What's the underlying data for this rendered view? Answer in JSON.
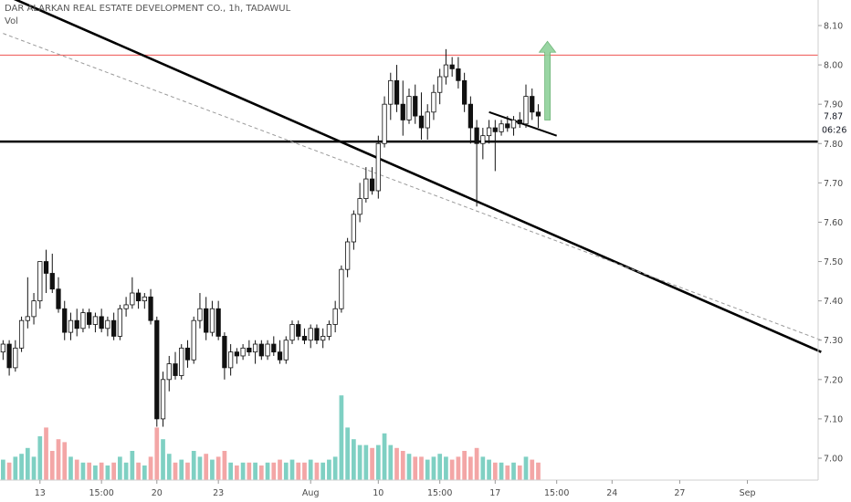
{
  "header": {
    "title": "DAR ALARKAN REAL ESTATE DEVELOPMENT CO., 1h, TADAWUL",
    "subtitle": "Vol"
  },
  "price_labels": {
    "current": "7.87",
    "countdown": "06:26"
  },
  "colors": {
    "up_candle": "#ffffff",
    "down_candle": "#111111",
    "vol_up": "#7fd0c3",
    "vol_down": "#f3a6a6",
    "resistance": "#ef5350",
    "support": "#000000",
    "trend": "#000000",
    "arrow": "#8fd19a"
  },
  "chart_data": {
    "type": "candlestick",
    "title": "DAR ALARKAN REAL ESTATE DEVELOPMENT CO., 1h, TADAWUL",
    "ylim": [
      6.92,
      8.15
    ],
    "y_ticks": [
      7.0,
      7.1,
      7.2,
      7.3,
      7.4,
      7.5,
      7.6,
      7.7,
      7.8,
      7.9,
      8.0,
      8.1
    ],
    "x_ticks": [
      {
        "label": "13",
        "bar": 6
      },
      {
        "label": "15:00",
        "bar": 16
      },
      {
        "label": "20",
        "bar": 25
      },
      {
        "label": "23",
        "bar": 35
      },
      {
        "label": "Aug",
        "bar": 50
      },
      {
        "label": "10",
        "bar": 61
      },
      {
        "label": "15:00",
        "bar": 71
      },
      {
        "label": "17",
        "bar": 80
      },
      {
        "label": "15:00",
        "bar": 90
      },
      {
        "label": "24",
        "bar": 99
      },
      {
        "label": "27",
        "bar": 110
      },
      {
        "label": "Sep",
        "bar": 121
      }
    ],
    "bars_visible": 133,
    "candles": [
      [
        7.27,
        7.3,
        7.25,
        7.29,
        0.035
      ],
      [
        7.29,
        7.3,
        7.21,
        7.23,
        0.03
      ],
      [
        7.23,
        7.3,
        7.22,
        7.28,
        0.04
      ],
      [
        7.28,
        7.36,
        7.27,
        7.35,
        0.045
      ],
      [
        7.35,
        7.46,
        7.33,
        7.36,
        0.055
      ],
      [
        7.36,
        7.42,
        7.34,
        7.4,
        0.04
      ],
      [
        7.4,
        7.5,
        7.38,
        7.5,
        0.075
      ],
      [
        7.5,
        7.53,
        7.42,
        7.47,
        0.09
      ],
      [
        7.47,
        7.52,
        7.42,
        7.43,
        0.05
      ],
      [
        7.43,
        7.46,
        7.37,
        7.38,
        0.07
      ],
      [
        7.38,
        7.4,
        7.3,
        7.32,
        0.065
      ],
      [
        7.32,
        7.37,
        7.3,
        7.35,
        0.04
      ],
      [
        7.35,
        7.38,
        7.31,
        7.33,
        0.035
      ],
      [
        7.33,
        7.38,
        7.32,
        7.37,
        0.03
      ],
      [
        7.37,
        7.38,
        7.33,
        7.34,
        0.03
      ],
      [
        7.34,
        7.37,
        7.32,
        7.36,
        0.025
      ],
      [
        7.36,
        7.38,
        7.32,
        7.33,
        0.03
      ],
      [
        7.33,
        7.36,
        7.31,
        7.35,
        0.025
      ],
      [
        7.35,
        7.37,
        7.3,
        7.31,
        0.03
      ],
      [
        7.31,
        7.39,
        7.3,
        7.38,
        0.04
      ],
      [
        7.38,
        7.41,
        7.36,
        7.39,
        0.03
      ],
      [
        7.39,
        7.46,
        7.38,
        7.42,
        0.05
      ],
      [
        7.42,
        7.43,
        7.38,
        7.4,
        0.03
      ],
      [
        7.4,
        7.42,
        7.38,
        7.41,
        0.025
      ],
      [
        7.41,
        7.43,
        7.34,
        7.35,
        0.04
      ],
      [
        7.35,
        7.36,
        7.08,
        7.1,
        0.09
      ],
      [
        7.1,
        7.22,
        7.08,
        7.2,
        0.07
      ],
      [
        7.2,
        7.26,
        7.17,
        7.24,
        0.045
      ],
      [
        7.24,
        7.27,
        7.2,
        7.21,
        0.03
      ],
      [
        7.21,
        7.29,
        7.2,
        7.28,
        0.035
      ],
      [
        7.28,
        7.3,
        7.23,
        7.25,
        0.03
      ],
      [
        7.25,
        7.36,
        7.24,
        7.35,
        0.05
      ],
      [
        7.35,
        7.42,
        7.33,
        7.38,
        0.04
      ],
      [
        7.38,
        7.41,
        7.3,
        7.32,
        0.045
      ],
      [
        7.32,
        7.4,
        7.31,
        7.38,
        0.035
      ],
      [
        7.38,
        7.4,
        7.3,
        7.31,
        0.04
      ],
      [
        7.31,
        7.32,
        7.2,
        7.23,
        0.05
      ],
      [
        7.23,
        7.29,
        7.21,
        7.27,
        0.03
      ],
      [
        7.27,
        7.28,
        7.24,
        7.26,
        0.025
      ],
      [
        7.26,
        7.29,
        7.25,
        7.28,
        0.03
      ],
      [
        7.28,
        7.3,
        7.26,
        7.27,
        0.03
      ],
      [
        7.27,
        7.3,
        7.24,
        7.29,
        0.03
      ],
      [
        7.29,
        7.3,
        7.25,
        7.26,
        0.025
      ],
      [
        7.26,
        7.3,
        7.25,
        7.29,
        0.03
      ],
      [
        7.29,
        7.31,
        7.26,
        7.27,
        0.03
      ],
      [
        7.27,
        7.3,
        7.24,
        7.25,
        0.035
      ],
      [
        7.25,
        7.31,
        7.24,
        7.3,
        0.03
      ],
      [
        7.3,
        7.35,
        7.29,
        7.34,
        0.035
      ],
      [
        7.34,
        7.35,
        7.3,
        7.31,
        0.03
      ],
      [
        7.31,
        7.33,
        7.29,
        7.3,
        0.03
      ],
      [
        7.3,
        7.34,
        7.28,
        7.33,
        0.035
      ],
      [
        7.33,
        7.34,
        7.29,
        7.3,
        0.03
      ],
      [
        7.3,
        7.33,
        7.28,
        7.31,
        0.03
      ],
      [
        7.31,
        7.35,
        7.3,
        7.34,
        0.035
      ],
      [
        7.34,
        7.4,
        7.32,
        7.38,
        0.04
      ],
      [
        7.38,
        7.49,
        7.37,
        7.48,
        0.145
      ],
      [
        7.48,
        7.56,
        7.46,
        7.55,
        0.09
      ],
      [
        7.55,
        7.63,
        7.53,
        7.62,
        0.07
      ],
      [
        7.62,
        7.7,
        7.6,
        7.66,
        0.06
      ],
      [
        7.66,
        7.74,
        7.65,
        7.71,
        0.06
      ],
      [
        7.71,
        7.74,
        7.67,
        7.68,
        0.055
      ],
      [
        7.68,
        7.82,
        7.66,
        7.8,
        0.06
      ],
      [
        7.8,
        7.92,
        7.79,
        7.9,
        0.08
      ],
      [
        7.9,
        7.98,
        7.86,
        7.96,
        0.06
      ],
      [
        7.96,
        8.0,
        7.88,
        7.9,
        0.055
      ],
      [
        7.9,
        7.96,
        7.82,
        7.86,
        0.05
      ],
      [
        7.86,
        7.94,
        7.85,
        7.92,
        0.045
      ],
      [
        7.92,
        7.95,
        7.85,
        7.87,
        0.04
      ],
      [
        7.87,
        7.93,
        7.81,
        7.84,
        0.04
      ],
      [
        7.84,
        7.9,
        7.81,
        7.88,
        0.035
      ],
      [
        7.88,
        7.95,
        7.86,
        7.93,
        0.04
      ],
      [
        7.93,
        7.99,
        7.9,
        7.97,
        0.045
      ],
      [
        7.97,
        8.04,
        7.95,
        8.0,
        0.04
      ],
      [
        8.0,
        8.02,
        7.97,
        7.99,
        0.035
      ],
      [
        7.99,
        8.02,
        7.94,
        7.96,
        0.04
      ],
      [
        7.96,
        7.98,
        7.88,
        7.9,
        0.05
      ],
      [
        7.9,
        7.92,
        7.8,
        7.84,
        0.04
      ],
      [
        7.84,
        7.86,
        7.64,
        7.8,
        0.055
      ],
      [
        7.8,
        7.84,
        7.76,
        7.82,
        0.04
      ],
      [
        7.82,
        7.86,
        7.8,
        7.84,
        0.035
      ],
      [
        7.84,
        7.86,
        7.73,
        7.83,
        0.03
      ],
      [
        7.83,
        7.86,
        7.82,
        7.85,
        0.03
      ],
      [
        7.85,
        7.87,
        7.83,
        7.84,
        0.025
      ],
      [
        7.84,
        7.87,
        7.82,
        7.86,
        0.03
      ],
      [
        7.86,
        7.88,
        7.84,
        7.85,
        0.025
      ],
      [
        7.85,
        7.95,
        7.84,
        7.92,
        0.04
      ],
      [
        7.92,
        7.94,
        7.86,
        7.88,
        0.035
      ],
      [
        7.88,
        7.9,
        7.84,
        7.87,
        0.03
      ]
    ],
    "lines": [
      {
        "name": "resistance",
        "type": "horizontal",
        "y": 8.025
      },
      {
        "name": "support",
        "type": "horizontal",
        "y": 7.805
      },
      {
        "name": "long-downtrend",
        "type": "segment",
        "x1": 0,
        "y1": 8.18,
        "x2": 133,
        "y2": 7.27
      },
      {
        "name": "parallel-dashed",
        "type": "segment",
        "x1": 0,
        "y1": 8.08,
        "x2": 133,
        "y2": 7.3
      },
      {
        "name": "flag-line",
        "type": "segment",
        "x1": 79,
        "y1": 7.88,
        "x2": 90,
        "y2": 7.82
      }
    ]
  }
}
